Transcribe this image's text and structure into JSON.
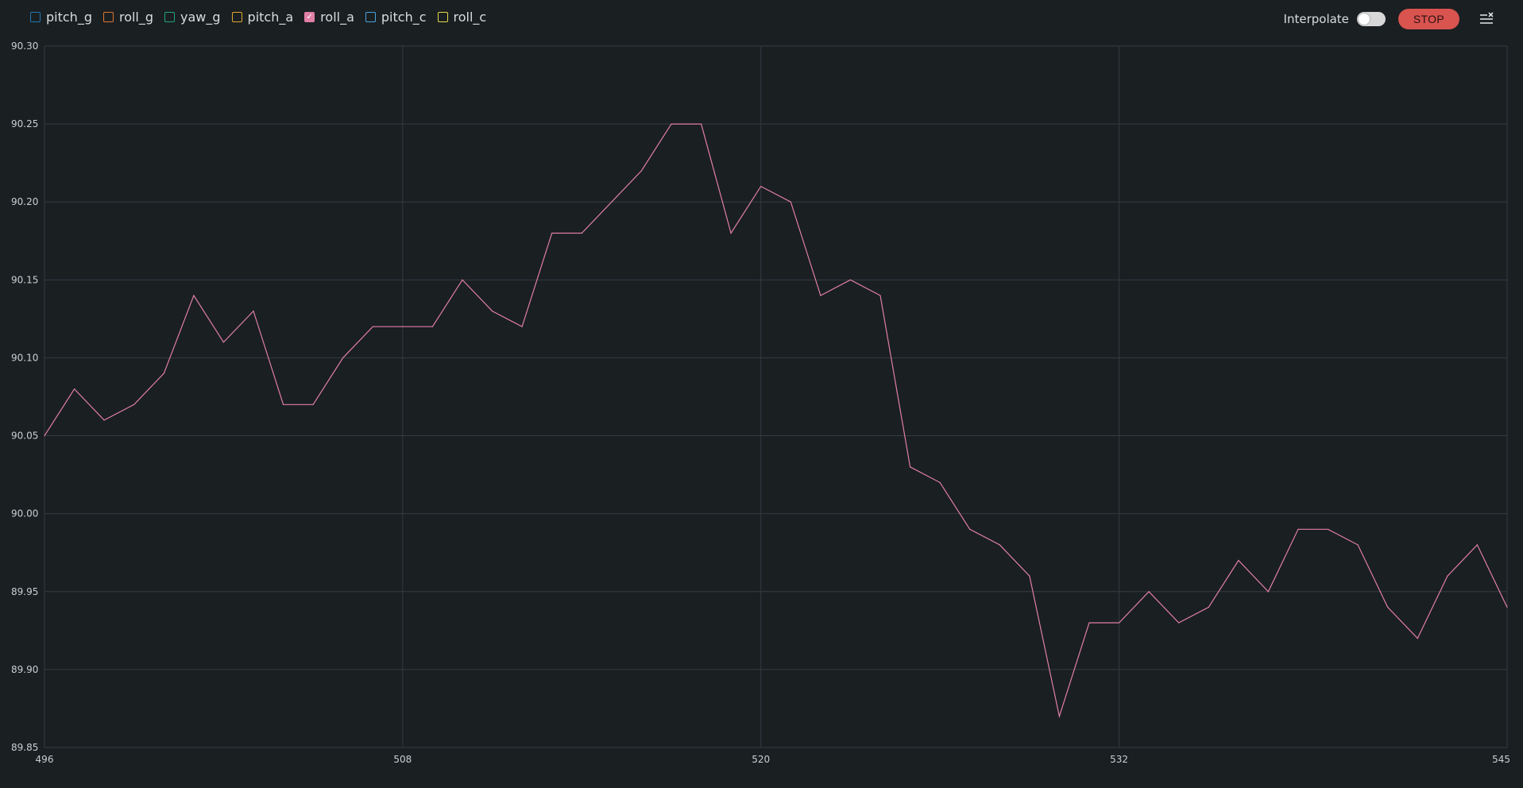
{
  "legend": {
    "items": [
      {
        "label": "pitch_g",
        "color": "#1f77b4",
        "checked": false
      },
      {
        "label": "roll_g",
        "color": "#e0752d",
        "checked": false
      },
      {
        "label": "yaw_g",
        "color": "#1fa67a",
        "checked": false
      },
      {
        "label": "pitch_a",
        "color": "#e0a82d",
        "checked": false
      },
      {
        "label": "roll_a",
        "color": "#e07fa6",
        "checked": true
      },
      {
        "label": "pitch_c",
        "color": "#4aa3df",
        "checked": false
      },
      {
        "label": "roll_c",
        "color": "#e6d84a",
        "checked": false
      }
    ]
  },
  "controls": {
    "interpolate_label": "Interpolate",
    "interpolate_on": false,
    "stop_label": "STOP",
    "menu_icon": "menu-close-icon"
  },
  "colors": {
    "background": "#1a1f22",
    "grid": "#343b40",
    "line": "#e07fa6",
    "stop": "#d9534f"
  },
  "chart_data": {
    "type": "line",
    "title": "",
    "xlabel": "",
    "ylabel": "",
    "xlim": [
      496,
      545
    ],
    "ylim": [
      89.85,
      90.3
    ],
    "x_ticks": [
      "496",
      "508",
      "520",
      "532",
      "545"
    ],
    "y_ticks": [
      "90.30",
      "90.25",
      "90.20",
      "90.15",
      "90.10",
      "90.05",
      "90.00",
      "89.95",
      "89.90",
      "89.85"
    ],
    "grid": true,
    "series": [
      {
        "name": "roll_a",
        "color": "#e07fa6",
        "x": [
          496,
          497,
          498,
          499,
          500,
          501,
          502,
          503,
          504,
          505,
          506,
          507,
          508,
          509,
          510,
          511,
          512,
          513,
          514,
          515,
          516,
          517,
          518,
          519,
          520,
          521,
          522,
          523,
          524,
          525,
          526,
          527,
          528,
          529,
          530,
          531,
          532,
          533,
          534,
          535,
          536,
          537,
          538,
          539,
          540,
          541,
          542,
          543,
          544,
          545
        ],
        "y": [
          90.05,
          90.08,
          90.06,
          90.07,
          90.09,
          90.14,
          90.11,
          90.13,
          90.07,
          90.07,
          90.1,
          90.12,
          90.12,
          90.12,
          90.15,
          90.13,
          90.12,
          90.18,
          90.18,
          90.2,
          90.22,
          90.25,
          90.25,
          90.18,
          90.21,
          90.2,
          90.14,
          90.15,
          90.14,
          90.03,
          90.02,
          89.99,
          89.98,
          89.96,
          89.87,
          89.93,
          89.93,
          89.95,
          89.93,
          89.94,
          89.97,
          89.95,
          89.99,
          89.99,
          89.98,
          89.94,
          89.92,
          89.96,
          89.98,
          89.94
        ]
      }
    ]
  }
}
